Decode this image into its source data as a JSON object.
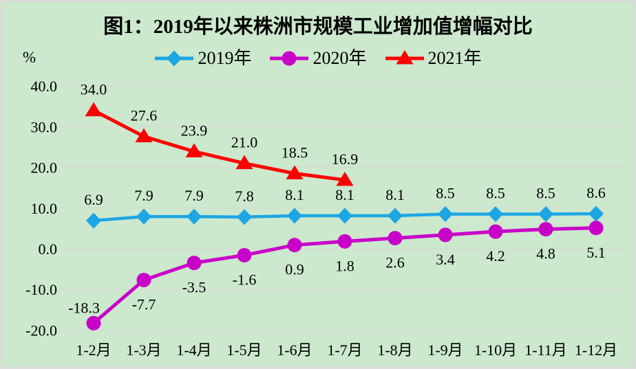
{
  "chart_data": {
    "type": "line",
    "title": "图1：2019年以来株洲市规模工业增加值增幅对比",
    "ylabel": "%",
    "xlabel": "",
    "categories": [
      "1-2月",
      "1-3月",
      "1-4月",
      "1-5月",
      "1-6月",
      "1-7月",
      "1-8月",
      "1-9月",
      "1-10月",
      "1-11月",
      "1-12月"
    ],
    "y_ticks": [
      40.0,
      30.0,
      20.0,
      10.0,
      0.0,
      -10.0,
      -20.0
    ],
    "ylim": [
      -20,
      40
    ],
    "grid": true,
    "legend_position": "top-center",
    "background_color": "#cce8cd",
    "gridline_color": "#d9d3d3",
    "series": [
      {
        "name": "2019年",
        "marker": "diamond",
        "color": "#1CA6E2",
        "label_side": "above",
        "values": [
          6.9,
          7.9,
          7.9,
          7.8,
          8.1,
          8.1,
          8.1,
          8.5,
          8.5,
          8.5,
          8.6
        ]
      },
      {
        "name": "2020年",
        "marker": "circle",
        "color": "#C800C8",
        "label_side": "below",
        "label_overrides": {
          "0": {
            "side": "above",
            "dx": -14,
            "dy": -23
          }
        },
        "values": [
          -18.3,
          -7.7,
          -3.5,
          -1.6,
          0.9,
          1.8,
          2.6,
          3.4,
          4.2,
          4.8,
          5.1
        ]
      },
      {
        "name": "2021年",
        "marker": "triangle",
        "color": "#FC0000",
        "label_side": "above",
        "values": [
          34.0,
          27.6,
          23.9,
          21.0,
          18.5,
          16.9
        ]
      }
    ]
  }
}
